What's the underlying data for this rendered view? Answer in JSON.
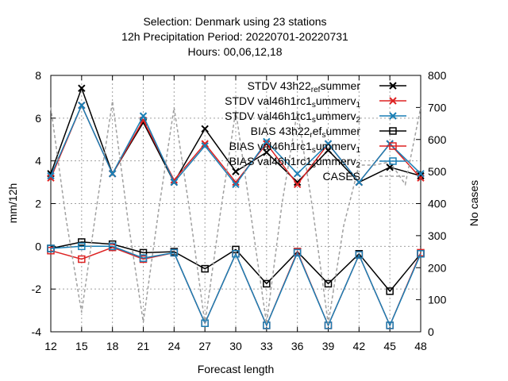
{
  "chart_data": {
    "type": "line",
    "title_lines": [
      "Selection: Denmark using    23 stations",
      "12h Precipitation    Period: 20220701-20220731",
      "Hours:  00,06,12,18"
    ],
    "xlabel": "Forecast length",
    "ylabel": "mm/12h",
    "y2label": "No cases",
    "x": [
      12,
      15,
      18,
      21,
      24,
      27,
      30,
      33,
      36,
      39,
      42,
      45,
      48
    ],
    "xlim": [
      12,
      48
    ],
    "ylim": [
      -4,
      8
    ],
    "y2lim": [
      0,
      800
    ],
    "yticks": [
      "-4",
      "-2",
      "0",
      "2",
      "4",
      "6",
      "8"
    ],
    "y2ticks": [
      "0",
      "100",
      "200",
      "300",
      "400",
      "500",
      "600",
      "700",
      "800"
    ],
    "xticks": [
      "12",
      "15",
      "18",
      "21",
      "24",
      "27",
      "30",
      "33",
      "36",
      "39",
      "42",
      "45",
      "48"
    ],
    "grid": true,
    "legend_position": "top-right",
    "series": [
      {
        "name": "STDV 43h22_ref_summer",
        "legend_main": "STDV 43h22",
        "legend_sub": "ref",
        "legend_tail": "s",
        "legend_end": "ummer",
        "color": "#000000",
        "marker": "x",
        "axis": "y1",
        "values": [
          3.4,
          7.4,
          3.4,
          5.8,
          3.0,
          5.5,
          3.5,
          4.4,
          3.0,
          4.5,
          3.0,
          3.7,
          3.3
        ]
      },
      {
        "name": "STDV val46h1rc1_summer_v1",
        "legend_main": "STDV val46h1rc1",
        "legend_sub": "s",
        "legend_tail": "ummer",
        "legend_end": "v",
        "legend_last": "1",
        "color": "#dd2222",
        "marker": "x",
        "axis": "y1",
        "values": [
          3.2,
          6.6,
          3.4,
          5.9,
          3.1,
          4.8,
          3.0,
          4.8,
          2.9,
          4.8,
          3.0,
          4.8,
          3.2
        ]
      },
      {
        "name": "STDV val46h1rc1_summer_v2",
        "legend_main": "STDV val46h1rc1",
        "legend_sub": "s",
        "legend_tail": "ummer",
        "legend_end": "v",
        "legend_last": "2",
        "color": "#1a7fb5",
        "marker": "x",
        "axis": "y1",
        "values": [
          3.3,
          6.6,
          3.4,
          6.1,
          3.0,
          4.7,
          2.9,
          4.9,
          3.4,
          4.8,
          3.0,
          4.8,
          3.4
        ]
      },
      {
        "name": "BIAS 43h22_ref_summer",
        "legend_main": "BIAS 43h22",
        "legend_sub": "r",
        "legend_tail": "ef",
        "legend_sub2": "s",
        "legend_end": "ummer",
        "color": "#000000",
        "marker": "square",
        "axis": "y1",
        "values": [
          -0.1,
          0.2,
          0.1,
          -0.3,
          -0.25,
          -1.05,
          -0.15,
          -1.75,
          -0.25,
          -1.75,
          -0.35,
          -2.1,
          -0.35
        ]
      },
      {
        "name": "BIAS val46h1rc1_summer_v1",
        "legend_main": "BIAS val46h1rc1",
        "legend_sub": "s",
        "legend_tail": "ummer",
        "legend_end": "v",
        "legend_last": "1",
        "color": "#dd2222",
        "marker": "square",
        "axis": "y1",
        "values": [
          -0.2,
          -0.6,
          -0.05,
          -0.6,
          -0.3,
          -3.6,
          -0.35,
          -3.7,
          -0.25,
          -3.7,
          -0.4,
          -3.7,
          -0.3
        ]
      },
      {
        "name": "BIAS val46h1rc1_summer_v2",
        "legend_main": "BIAS val46h1rc1",
        "legend_sub": "s",
        "legend_tail": "ummer",
        "legend_end": "v",
        "legend_last": "2",
        "color": "#1a7fb5",
        "marker": "square",
        "axis": "y1",
        "values": [
          -0.1,
          0.0,
          0.0,
          -0.55,
          -0.3,
          -3.6,
          -0.35,
          -3.7,
          -0.3,
          -3.7,
          -0.4,
          -3.7,
          -0.35
        ]
      },
      {
        "name": "CASES",
        "legend_main": "CASES",
        "color": "#a0a0a0",
        "marker": "none",
        "dashed": true,
        "axis": "y2",
        "x": [
          12,
          13.5,
          15,
          16.5,
          18,
          19.5,
          21,
          22.5,
          24,
          25.5,
          27,
          28.5,
          30,
          31.5,
          33,
          34.5,
          36,
          37.5,
          39,
          40.5,
          42,
          43.5,
          45,
          46.5,
          48
        ],
        "values": [
          700,
          350,
          60,
          400,
          720,
          350,
          30,
          380,
          700,
          380,
          25,
          370,
          690,
          360,
          25,
          400,
          690,
          380,
          25,
          330,
          520,
          520,
          530,
          460,
          700
        ]
      }
    ]
  }
}
